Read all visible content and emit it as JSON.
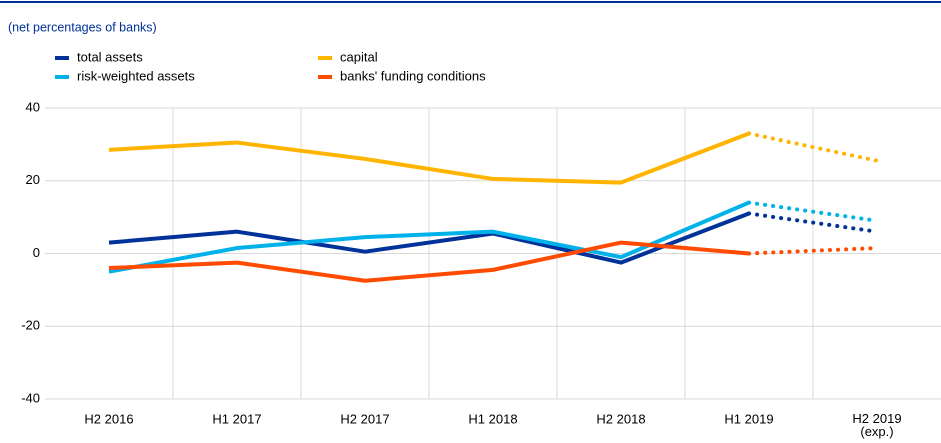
{
  "chart_data": {
    "type": "line",
    "subtitle": "(net percentages of banks)",
    "categories": [
      "H2 2016",
      "H1 2017",
      "H2 2017",
      "H1 2018",
      "H2 2018",
      "H1 2019",
      "H2 2019\n(exp.)"
    ],
    "projection_start": 5,
    "series": [
      {
        "name": "total assets",
        "color": "#003299",
        "values": [
          3,
          6,
          0.5,
          5.5,
          -2.5,
          11,
          6
        ]
      },
      {
        "name": "capital",
        "color": "#ffb400",
        "values": [
          28.5,
          30.5,
          26,
          20.5,
          19.5,
          33,
          25.5
        ]
      },
      {
        "name": "risk-weighted assets",
        "color": "#00b1ea",
        "values": [
          -5,
          1.5,
          4.5,
          6,
          -1,
          14,
          9
        ]
      },
      {
        "name": "banks' funding conditions",
        "color": "#ff4b00",
        "values": [
          -4,
          -2.5,
          -7.5,
          -4.5,
          3,
          0,
          1.5
        ]
      }
    ],
    "ylim": [
      -40,
      40
    ],
    "yticks": [
      -40,
      -20,
      0,
      20,
      40
    ],
    "grid": true
  }
}
